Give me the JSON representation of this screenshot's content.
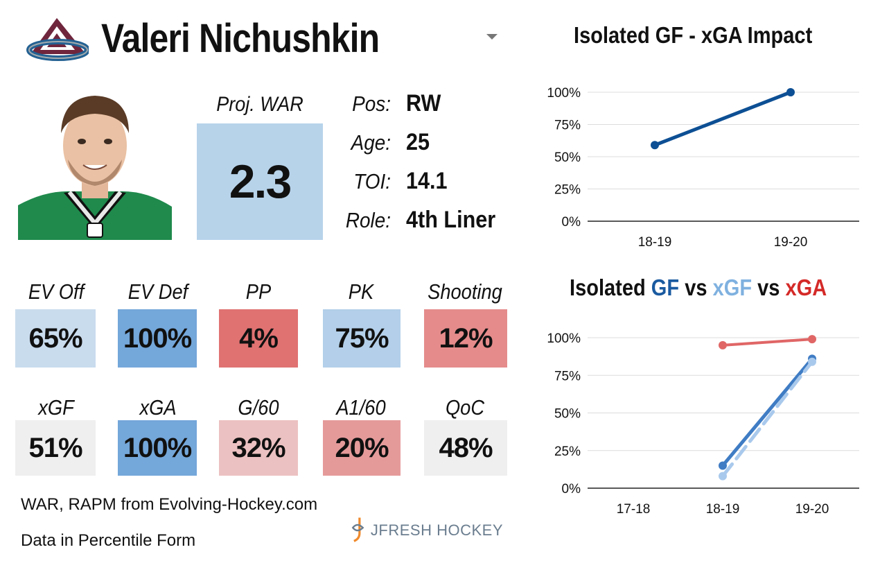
{
  "player": {
    "name": "Valeri Nichushkin"
  },
  "war": {
    "label": "Proj. WAR",
    "value": "2.3"
  },
  "info": [
    {
      "label": "Pos:",
      "value": "RW"
    },
    {
      "label": "Age:",
      "value": "25"
    },
    {
      "label": "TOI:",
      "value": "14.1"
    },
    {
      "label": "Role:",
      "value": "4th Liner"
    }
  ],
  "stats_row1": [
    {
      "label": "EV Off",
      "value": "65%",
      "color": "#c9dcee"
    },
    {
      "label": "EV Def",
      "value": "100%",
      "color": "#74a7da"
    },
    {
      "label": "PP",
      "value": "4%",
      "color": "#e07272"
    },
    {
      "label": "PK",
      "value": "75%",
      "color": "#b3cfe9"
    },
    {
      "label": "Shooting",
      "value": "12%",
      "color": "#e58b8b"
    }
  ],
  "stats_row2": [
    {
      "label": "xGF",
      "value": "51%",
      "color": "#efefef"
    },
    {
      "label": "xGA",
      "value": "100%",
      "color": "#74a7da"
    },
    {
      "label": "G/60",
      "value": "32%",
      "color": "#ecc1c1"
    },
    {
      "label": "A1/60",
      "value": "20%",
      "color": "#e59a9a"
    },
    {
      "label": "QoC",
      "value": "48%",
      "color": "#efefef"
    }
  ],
  "footer": {
    "source": "WAR, RAPM from  Evolving-Hockey.com",
    "note": "Data in Percentile Form",
    "brand": "JFRESH HOCKEY"
  },
  "colors": {
    "gf": "#1a5aa0",
    "xgf": "#a9c9ec",
    "xga": "#e06666",
    "line1": "#0d4f94"
  },
  "chart1_title": "Isolated GF - xGA Impact",
  "chart2_title": {
    "p1": "Isolated ",
    "gf": "GF",
    "p2": " vs ",
    "xgf": "xGF",
    "p3": " vs ",
    "xga": "xGA"
  },
  "chart_data": [
    {
      "type": "line",
      "title": "Isolated GF - xGA Impact",
      "categories": [
        "18-19",
        "19-20"
      ],
      "series": [
        {
          "values": [
            59,
            100
          ]
        }
      ],
      "yticks": [
        "0%",
        "25%",
        "50%",
        "75%",
        "100%"
      ],
      "ylim": [
        0,
        100
      ]
    },
    {
      "type": "line",
      "title": "Isolated GF vs xGF vs xGA",
      "categories": [
        "17-18",
        "18-19",
        "19-20"
      ],
      "series": [
        {
          "name": "GF",
          "values": [
            null,
            15,
            86
          ]
        },
        {
          "name": "xGF",
          "values": [
            null,
            8,
            84
          ]
        },
        {
          "name": "xGA",
          "values": [
            null,
            95,
            99
          ]
        }
      ],
      "yticks": [
        "0%",
        "25%",
        "50%",
        "75%",
        "100%"
      ],
      "ylim": [
        0,
        100
      ]
    }
  ]
}
